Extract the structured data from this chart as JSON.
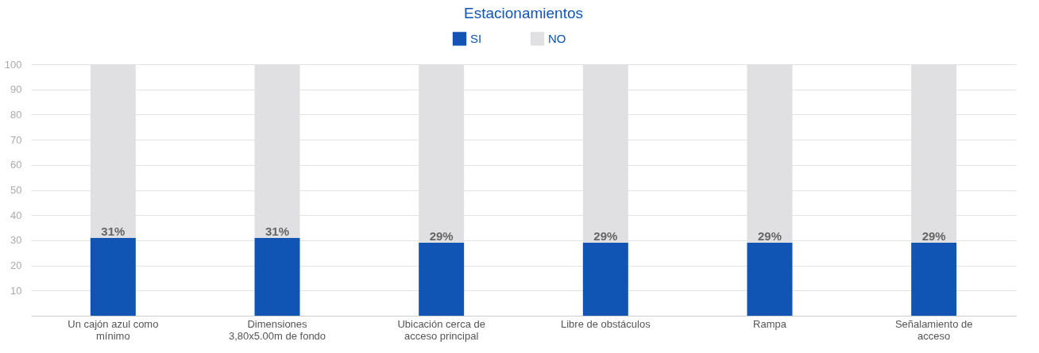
{
  "chart_data": {
    "type": "bar",
    "title": "Estacionamientos",
    "stacked": true,
    "categories": [
      "Un cajón azul como mínimo",
      "Dimensiones 3,80x5.00m de fondo",
      "Ubicación cerca de acceso principal",
      "Libre de obstáculos",
      "Rampa",
      "Señalamiento de acceso"
    ],
    "series": [
      {
        "name": "SI",
        "color": "#1155b4",
        "values": [
          31,
          31,
          29,
          29,
          29,
          29
        ],
        "value_labels": [
          "31%",
          "31%",
          "29%",
          "29%",
          "29%",
          "29%"
        ]
      },
      {
        "name": "NO",
        "color": "#e0e0e2",
        "values": [
          69,
          69,
          71,
          71,
          71,
          71
        ]
      }
    ],
    "ylim": [
      0,
      100
    ],
    "yticks": [
      10,
      20,
      30,
      40,
      50,
      60,
      70,
      80,
      90,
      100
    ],
    "grid": "y",
    "legend": "top"
  }
}
